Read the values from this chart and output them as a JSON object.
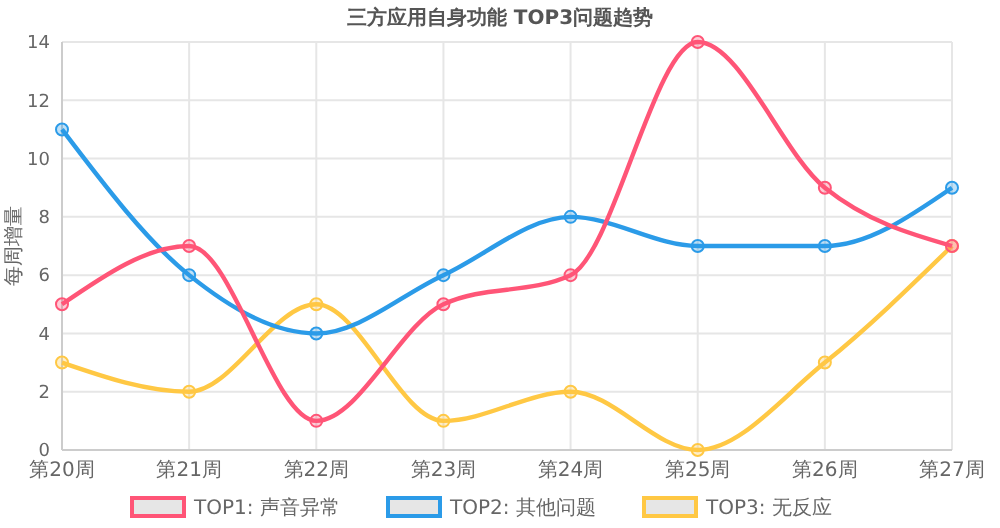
{
  "chart_data": {
    "type": "line",
    "title": "三方应用自身功能 TOP3问题趋势",
    "ylabel": "每周增量",
    "categories": [
      "第20周",
      "第21周",
      "第22周",
      "第23周",
      "第24周",
      "第25周",
      "第26周",
      "第27周"
    ],
    "series": [
      {
        "name": "TOP1: 声音异常",
        "color": "#ff5577",
        "values": [
          5,
          7,
          1,
          5,
          6,
          14,
          9,
          7
        ]
      },
      {
        "name": "TOP2: 其他问题",
        "color": "#2b9be8",
        "values": [
          11,
          6,
          4,
          6,
          8,
          7,
          7,
          9
        ]
      },
      {
        "name": "TOP3: 无反应",
        "color": "#ffc844",
        "values": [
          3,
          2,
          5,
          1,
          2,
          0,
          3,
          7
        ]
      }
    ],
    "ylim": [
      0,
      14
    ],
    "yticks": [
      0,
      2,
      4,
      6,
      8,
      10,
      12,
      14
    ],
    "grid": true,
    "legend": "bottom",
    "marker": "circle",
    "line_style": "solid"
  }
}
